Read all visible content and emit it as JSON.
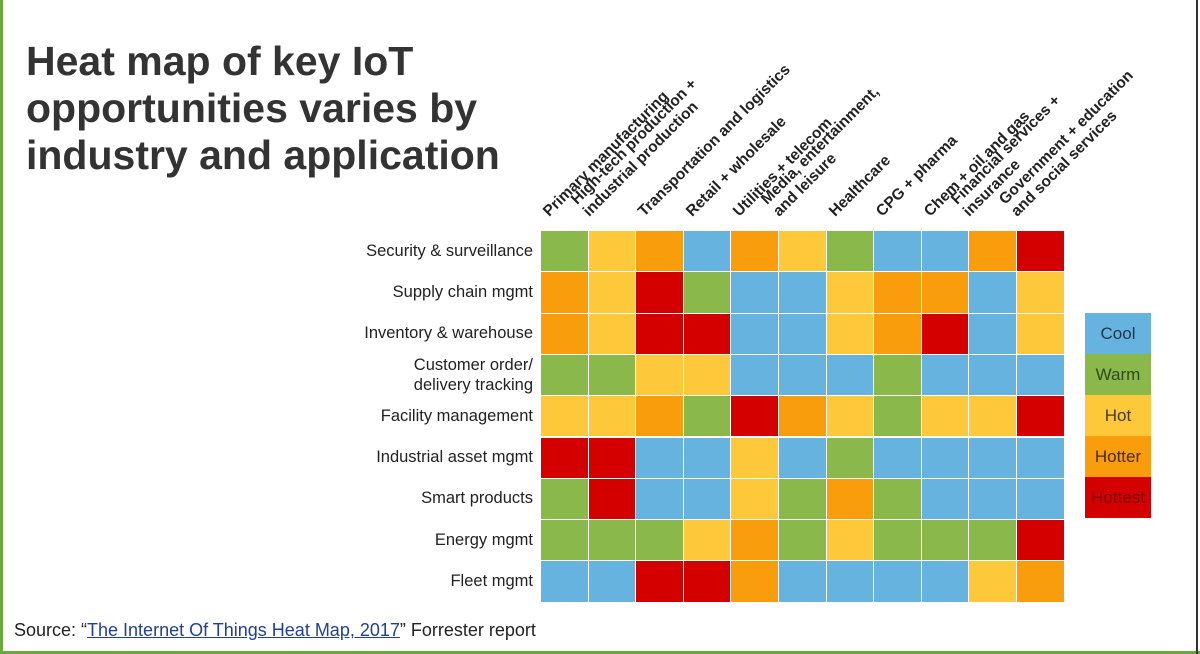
{
  "title_lines": [
    "Heat map of key IoT",
    "opportunities varies by",
    "industry and application"
  ],
  "source": {
    "prefix": "Source: “",
    "link_text": "The Internet Of Things Heat Map, 2017",
    "suffix": "” Forrester report"
  },
  "colors": {
    "Cool": "#67b3e0",
    "Warm": "#8ab84a",
    "Hot": "#fdc93a",
    "Hotter": "#fa9d0c",
    "Hottest": "#d40000",
    "frame": "#6aaa3c"
  },
  "chart_data": {
    "type": "heatmap",
    "title": "Heat map of key IoT opportunities varies by industry and application",
    "columns": [
      [
        "Primary manufacturing"
      ],
      [
        "High-tech production +",
        "industrial production"
      ],
      [
        "Transportation and logistics"
      ],
      [
        "Retail + wholesale"
      ],
      [
        "Utilities + telecom"
      ],
      [
        "Media, entertainment,",
        "and leisure"
      ],
      [
        "Healthcare"
      ],
      [
        "CPG + pharma"
      ],
      [
        "Chem + oil and gas"
      ],
      [
        "Financial services +",
        "insurance"
      ],
      [
        "Government + education",
        "and social services"
      ]
    ],
    "rows": [
      [
        "Security & surveillance"
      ],
      [
        "Supply chain mgmt"
      ],
      [
        "Inventory & warehouse"
      ],
      [
        "Customer order/",
        "delivery tracking"
      ],
      [
        "Facility management"
      ],
      [
        "Industrial asset mgmt"
      ],
      [
        "Smart products"
      ],
      [
        "Energy mgmt"
      ],
      [
        "Fleet mgmt"
      ]
    ],
    "scale": [
      "Cool",
      "Warm",
      "Hot",
      "Hotter",
      "Hottest"
    ],
    "values": [
      [
        "Warm",
        "Hot",
        "Hotter",
        "Cool",
        "Hotter",
        "Hot",
        "Warm",
        "Cool",
        "Cool",
        "Hotter",
        "Hottest"
      ],
      [
        "Hotter",
        "Hot",
        "Hottest",
        "Warm",
        "Cool",
        "Cool",
        "Hot",
        "Hotter",
        "Hotter",
        "Cool",
        "Hot"
      ],
      [
        "Hotter",
        "Hot",
        "Hottest",
        "Hottest",
        "Cool",
        "Cool",
        "Hot",
        "Hotter",
        "Hottest",
        "Cool",
        "Hot"
      ],
      [
        "Warm",
        "Warm",
        "Hot",
        "Hot",
        "Cool",
        "Cool",
        "Cool",
        "Warm",
        "Cool",
        "Cool",
        "Cool"
      ],
      [
        "Hot",
        "Hot",
        "Hotter",
        "Warm",
        "Hottest",
        "Hotter",
        "Hot",
        "Warm",
        "Hot",
        "Hot",
        "Hottest"
      ],
      [
        "Hottest",
        "Hottest",
        "Cool",
        "Cool",
        "Hot",
        "Cool",
        "Warm",
        "Cool",
        "Cool",
        "Cool",
        "Cool"
      ],
      [
        "Warm",
        "Hottest",
        "Cool",
        "Cool",
        "Hot",
        "Warm",
        "Hotter",
        "Warm",
        "Cool",
        "Cool",
        "Cool"
      ],
      [
        "Warm",
        "Warm",
        "Warm",
        "Hot",
        "Hotter",
        "Warm",
        "Hot",
        "Warm",
        "Warm",
        "Warm",
        "Hottest"
      ],
      [
        "Cool",
        "Cool",
        "Hottest",
        "Hottest",
        "Hotter",
        "Cool",
        "Cool",
        "Cool",
        "Cool",
        "Hot",
        "Hotter"
      ]
    ],
    "legend": {
      "placement": "right",
      "items": [
        {
          "label": "Cool",
          "text_color": "#1f3550"
        },
        {
          "label": "Warm",
          "text_color": "#2f4a1c"
        },
        {
          "label": "Hot",
          "text_color": "#4a3a10"
        },
        {
          "label": "Hotter",
          "text_color": "#4a2a05"
        },
        {
          "label": "Hottest",
          "text_color": "#7a0000"
        }
      ]
    }
  }
}
